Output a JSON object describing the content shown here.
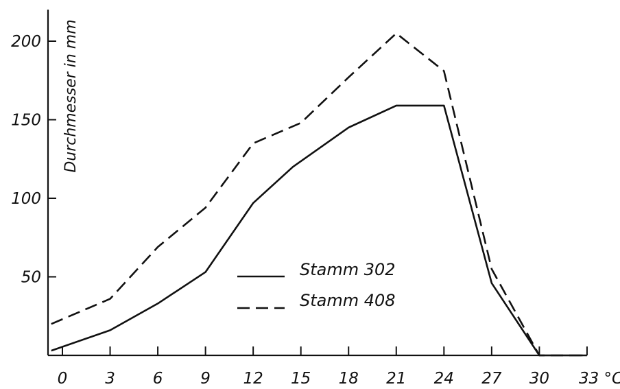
{
  "chart_data": {
    "type": "line",
    "title": "",
    "xlabel": "",
    "x_unit": "°C",
    "ylabel": "Durchmesser in mm",
    "xlim": [
      -1,
      34
    ],
    "ylim": [
      0,
      215
    ],
    "x_ticks": [
      0,
      3,
      6,
      9,
      12,
      15,
      18,
      21,
      24,
      27,
      30,
      33
    ],
    "x_tick_labels": [
      "0",
      "3",
      "6",
      "9",
      "12",
      "15",
      "18",
      "21",
      "24",
      "27",
      "30",
      "33 °C"
    ],
    "y_ticks": [
      50,
      100,
      150,
      200
    ],
    "y_tick_labels": [
      "50",
      "100",
      "150",
      "200"
    ],
    "grid": false,
    "legend_position": "center",
    "series": [
      {
        "name": "Stamm 302",
        "style": "solid",
        "x": [
          -0.7,
          3,
          6,
          9,
          12,
          14.5,
          18,
          21,
          24,
          27,
          30,
          33
        ],
        "y": [
          3,
          16,
          33,
          53,
          97,
          120,
          145,
          159,
          159,
          46,
          0,
          0
        ]
      },
      {
        "name": "Stamm 408",
        "style": "dashed",
        "x": [
          -0.7,
          3,
          6,
          9,
          12,
          15,
          18,
          21,
          24,
          27,
          30,
          33
        ],
        "y": [
          20,
          36,
          69,
          94,
          135,
          148,
          177,
          205,
          181,
          55,
          0,
          0
        ]
      }
    ]
  }
}
